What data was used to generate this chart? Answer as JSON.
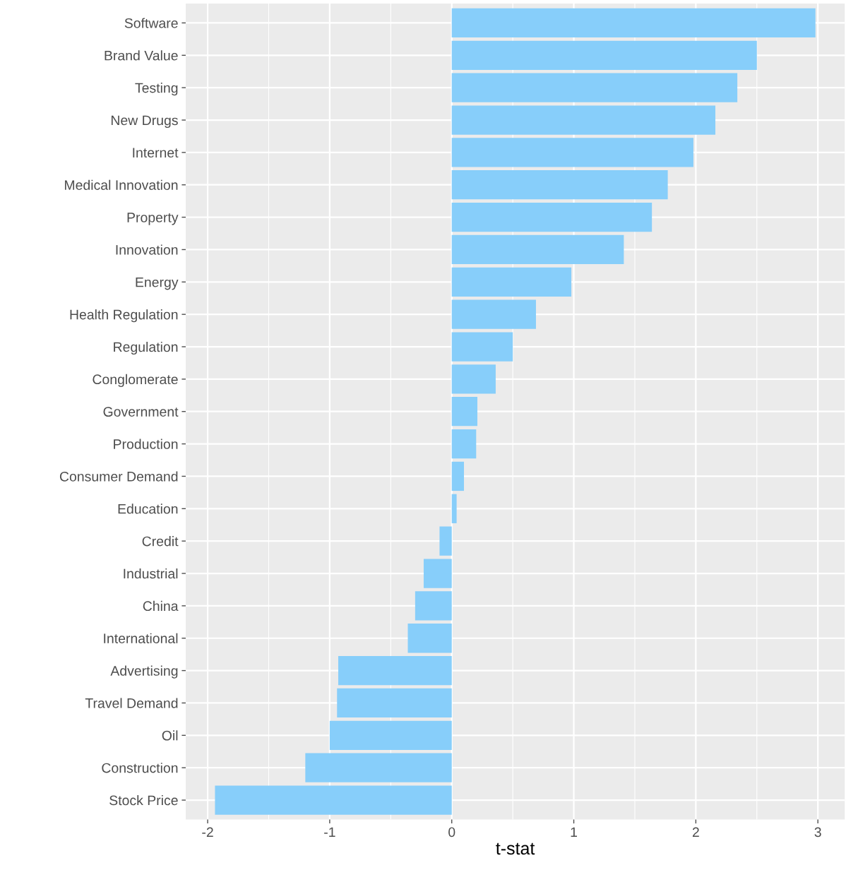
{
  "chart_data": {
    "type": "bar",
    "orientation": "horizontal",
    "xlabel": "t-stat",
    "categories": [
      "Software",
      "Brand Value",
      "Testing",
      "New Drugs",
      "Internet",
      "Medical Innovation",
      "Property",
      "Innovation",
      "Energy",
      "Health Regulation",
      "Regulation",
      "Conglomerate",
      "Government",
      "Production",
      "Consumer Demand",
      "Education",
      "Credit",
      "Industrial",
      "China",
      "International",
      "Advertising",
      "Travel Demand",
      "Oil",
      "Construction",
      "Stock Price"
    ],
    "values": [
      2.98,
      2.5,
      2.34,
      2.16,
      1.98,
      1.77,
      1.64,
      1.41,
      0.98,
      0.69,
      0.5,
      0.36,
      0.21,
      0.2,
      0.1,
      0.04,
      -0.1,
      -0.23,
      -0.3,
      -0.36,
      -0.93,
      -0.94,
      -1.0,
      -1.2,
      -1.94
    ],
    "color": "#87cefa",
    "xlim": [
      -2.18,
      3.22
    ],
    "xticks": [
      -2,
      -1,
      0,
      1,
      2,
      3
    ],
    "grid": true,
    "legend": false
  }
}
